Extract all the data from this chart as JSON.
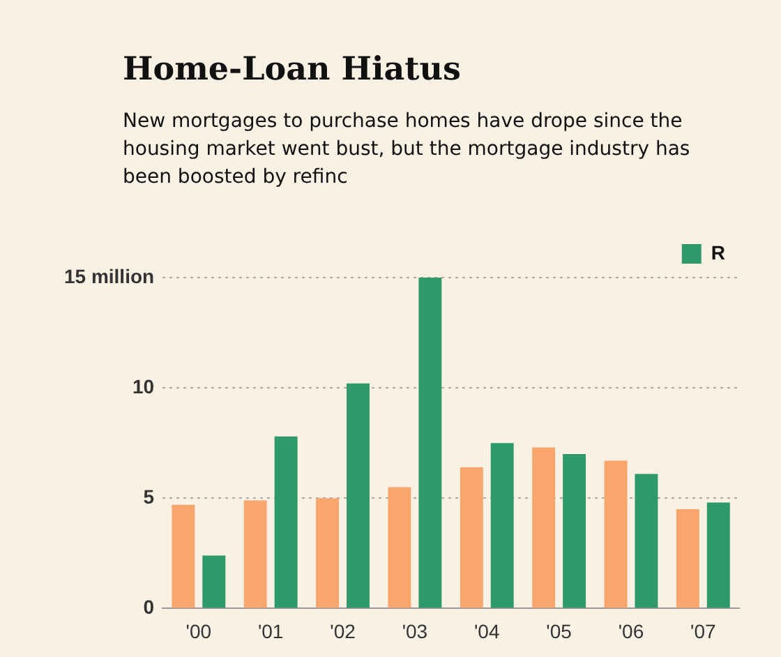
{
  "chart_data": {
    "type": "bar",
    "title": "Home-Loan Hiatus",
    "subtitle": "New mortgages to purchase homes have drope since the housing market went bust, but the mortgage industry has been boosted by refinc",
    "categories": [
      "'00",
      "'01",
      "'02",
      "'03",
      "'04",
      "'05",
      "'06",
      "'07"
    ],
    "series": [
      {
        "color": "#f9a66c",
        "values": [
          4.7,
          4.9,
          5.0,
          5.5,
          6.4,
          7.3,
          6.7,
          4.5
        ]
      },
      {
        "name": "R",
        "color": "#2e9a6c",
        "values": [
          2.4,
          7.8,
          10.2,
          15.0,
          7.5,
          7.0,
          6.1,
          4.8
        ]
      }
    ],
    "ylim": [
      0,
      15
    ],
    "yticks": [
      0,
      5,
      10,
      {
        "value": 15,
        "label": "15 million"
      }
    ],
    "grid": "y",
    "legend": "top right"
  }
}
